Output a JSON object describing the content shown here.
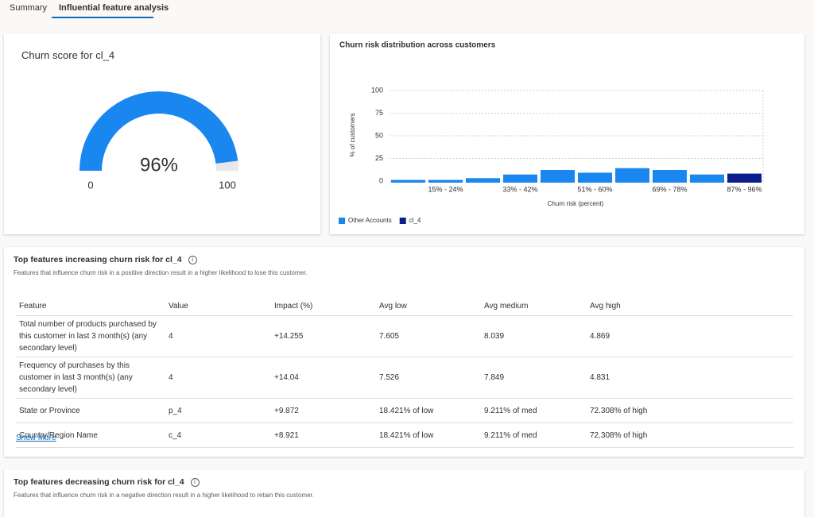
{
  "tabs": [
    "Summary",
    "Influential feature analysis"
  ],
  "gauge": {
    "title": "Churn score for cl_4",
    "value": 96,
    "value_label": "96%",
    "min": 0,
    "max": 100
  },
  "chart_data": {
    "type": "bar",
    "title": "Churn risk distribution across customers",
    "x_label": "Churn risk (percent)",
    "y_label": "% of customers",
    "categories": [
      null,
      "15% - 24%",
      null,
      "33% - 42%",
      null,
      "51% - 60%",
      null,
      "69% - 78%",
      null,
      "87% - 96%"
    ],
    "series": [
      {
        "name": "Other Accounts",
        "color": "#1a86f0",
        "values": [
          3,
          3,
          5,
          9,
          14,
          11,
          16,
          14,
          9,
          null
        ]
      },
      {
        "name": "cl_4",
        "color": "#0b1e8c",
        "values": [
          null,
          null,
          null,
          null,
          null,
          null,
          null,
          null,
          null,
          10
        ]
      }
    ],
    "ylim": [
      0,
      100
    ],
    "yticks": [
      0,
      25,
      50,
      75,
      100
    ],
    "grid": true
  },
  "increasing": {
    "title": "Top features increasing churn risk for cl_4",
    "subtitle": "Features that influence churn risk in a positive direction result in a higher likelihood to lose this customer.",
    "columns": [
      "Feature",
      "Value",
      "Impact (%)",
      "Avg low",
      "Avg medium",
      "Avg high"
    ],
    "rows": [
      [
        "Total number of products purchased by this customer in last 3 month(s) (any secondary level)",
        "4",
        "+14.255",
        "7.605",
        "8.039",
        "4.869"
      ],
      [
        "Frequency of purchases by this customer in last 3 month(s) (any secondary level)",
        "4",
        "+14.04",
        "7.526",
        "7.849",
        "4.831"
      ],
      [
        "State or Province",
        "p_4",
        "+9.872",
        "18.421% of low",
        "9.211% of med",
        "72.308% of high"
      ],
      [
        "Country/Region Name",
        "c_4",
        "+8.921",
        "18.421% of low",
        "9.211% of med",
        "72.308% of high"
      ]
    ],
    "link": "Show More"
  },
  "decreasing": {
    "title": "Top features decreasing churn risk for cl_4",
    "subtitle": "Features that influence churn risk in a negative direction result in a higher likelihood to retain this customer."
  }
}
